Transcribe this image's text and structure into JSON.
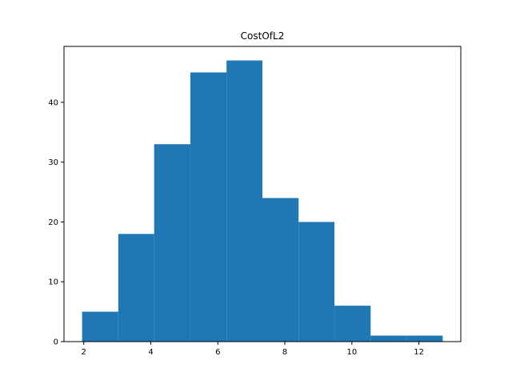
{
  "chart_data": {
    "type": "bar",
    "title": "CostOfL2",
    "xlabel": "",
    "ylabel": "",
    "bins": [
      {
        "start": 1.95,
        "end": 3.03,
        "count": 5
      },
      {
        "start": 3.03,
        "end": 4.1,
        "count": 18
      },
      {
        "start": 4.1,
        "end": 5.18,
        "count": 33
      },
      {
        "start": 5.18,
        "end": 6.26,
        "count": 45
      },
      {
        "start": 6.26,
        "end": 7.33,
        "count": 47
      },
      {
        "start": 7.33,
        "end": 8.41,
        "count": 24
      },
      {
        "start": 8.41,
        "end": 9.48,
        "count": 20
      },
      {
        "start": 9.48,
        "end": 10.56,
        "count": 6
      },
      {
        "start": 10.56,
        "end": 11.63,
        "count": 1
      },
      {
        "start": 11.63,
        "end": 12.71,
        "count": 1
      }
    ],
    "xticks": [
      "2",
      "4",
      "6",
      "8",
      "10",
      "12"
    ],
    "yticks": [
      "0",
      "10",
      "20",
      "30",
      "40"
    ],
    "xlim": [
      1.41,
      13.25
    ],
    "ylim": [
      0,
      49.35
    ],
    "bar_color": "#1f77b4",
    "grid": false,
    "legend": "none"
  }
}
